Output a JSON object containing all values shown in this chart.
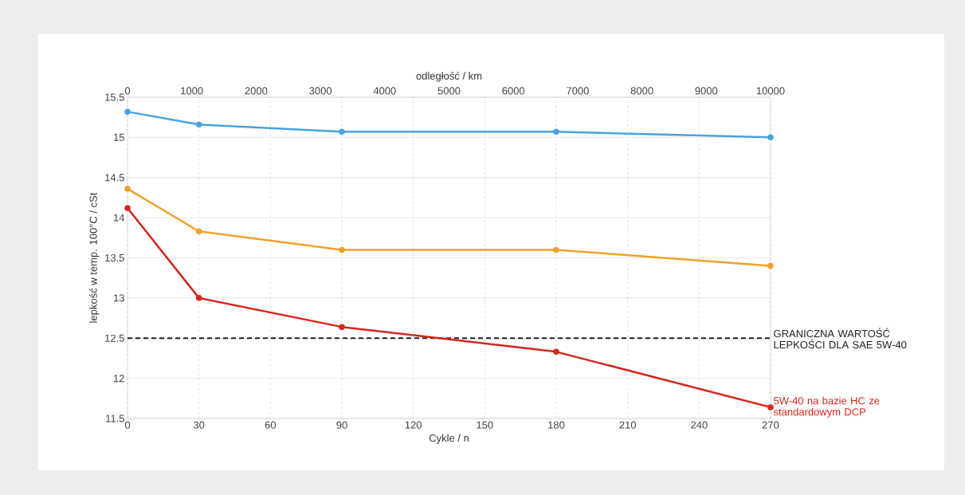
{
  "chart_data": {
    "type": "line",
    "xlabel": "Cykle / n",
    "ylabel": "lepkość w temp. 100°C / cSt",
    "x2label": "odległość / km",
    "xlim": [
      0,
      270
    ],
    "xticks": [
      0,
      30,
      60,
      90,
      120,
      150,
      180,
      210,
      240,
      270
    ],
    "x2lim": [
      0,
      10000
    ],
    "x2ticks": [
      0,
      1000,
      2000,
      3000,
      4000,
      5000,
      6000,
      7000,
      8000,
      9000,
      10000
    ],
    "ylim": [
      11.5,
      15.5
    ],
    "yticks": [
      11.5,
      12,
      12.5,
      13,
      13.5,
      14,
      14.5,
      15,
      15.5
    ],
    "grid": true,
    "marker": "circle",
    "line_style": "solid",
    "x": [
      0,
      30,
      90,
      180,
      270
    ],
    "series": [
      {
        "color": "#4aa3dc",
        "values": [
          15.32,
          15.16,
          15.07,
          15.07,
          15.0
        ]
      },
      {
        "color": "#f0a02a",
        "values": [
          14.36,
          13.83,
          13.6,
          13.6,
          13.4
        ]
      },
      {
        "name": "5W-40 na bazie HC ze standardowym DCP",
        "color": "#d7261e",
        "values": [
          14.12,
          13.0,
          12.64,
          12.33,
          11.64
        ]
      }
    ],
    "ref_lines": [
      {
        "axis": "y",
        "value": 12.5,
        "label": "GRANICZNA WARTOŚĆ LEPKOŚCI DLA SAE 5W-40",
        "color": "#222222",
        "line_style": "dashed"
      }
    ]
  }
}
